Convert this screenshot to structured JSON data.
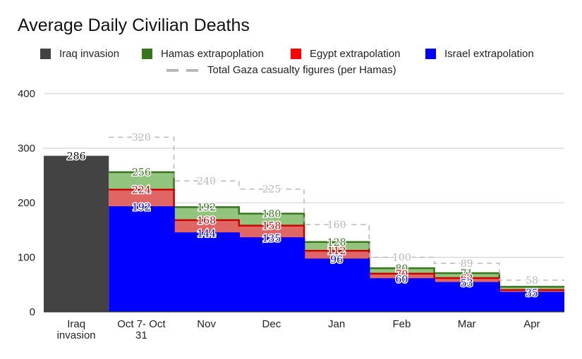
{
  "chart_data": {
    "type": "area",
    "title": "Average Daily Civilian Deaths",
    "ylim": [
      0,
      400
    ],
    "yticks": [
      0,
      100,
      200,
      300,
      400
    ],
    "categories": [
      "Iraq\ninvasion",
      "Oct 7- Oct\n31",
      "Nov",
      "Dec",
      "Jan",
      "Feb",
      "Mar",
      "Apr"
    ],
    "legend": [
      {
        "label": "Iraq invasion",
        "color": "#434343",
        "kind": "box"
      },
      {
        "label": "Hamas extrapoplation",
        "color": "#38761d",
        "kind": "box"
      },
      {
        "label": "Egypt extrapolation",
        "color": "#ff0000",
        "kind": "box"
      },
      {
        "label": "Israel extrapolation",
        "color": "#0000ff",
        "kind": "box"
      },
      {
        "label": "Total Gaza casualty figures (per Hamas)",
        "color": "#b7b7b7",
        "kind": "dash"
      }
    ],
    "grid": true,
    "series": [
      {
        "name": "Iraq invasion",
        "color": "#434343",
        "values": [
          286,
          null,
          null,
          null,
          null,
          null,
          null,
          null
        ],
        "labels": [
          "286",
          "",
          "",
          "",
          "",
          "",
          "",
          ""
        ]
      },
      {
        "name": "Hamas extrapoplation",
        "color": "#38761d",
        "fill": "#93c47d",
        "values": [
          null,
          256,
          192,
          180,
          128,
          80,
          71,
          46
        ],
        "labels": [
          "",
          "256",
          "192",
          "180",
          "128",
          "80",
          "71",
          ""
        ]
      },
      {
        "name": "Egypt extrapolation",
        "color": "#cc0000",
        "fill": "#e06666",
        "values": [
          null,
          224,
          168,
          158,
          112,
          70,
          62,
          40
        ],
        "labels": [
          "",
          "224",
          "168",
          "158",
          "112",
          "70",
          "62",
          ""
        ]
      },
      {
        "name": "Israel extrapolation",
        "color": "#0000ff",
        "fill": "#0000ff",
        "values": [
          null,
          192,
          144,
          135,
          96,
          60,
          53,
          35
        ],
        "labels": [
          "",
          "192",
          "144",
          "135",
          "96",
          "60",
          "53",
          "35"
        ]
      },
      {
        "name": "Total Gaza casualty figures (per Hamas)",
        "color": "#b7b7b7",
        "values": [
          null,
          320,
          240,
          225,
          160,
          100,
          89,
          58
        ],
        "labels": [
          "",
          "320",
          "240",
          "225",
          "160",
          "100",
          "89",
          "58"
        ]
      }
    ]
  }
}
